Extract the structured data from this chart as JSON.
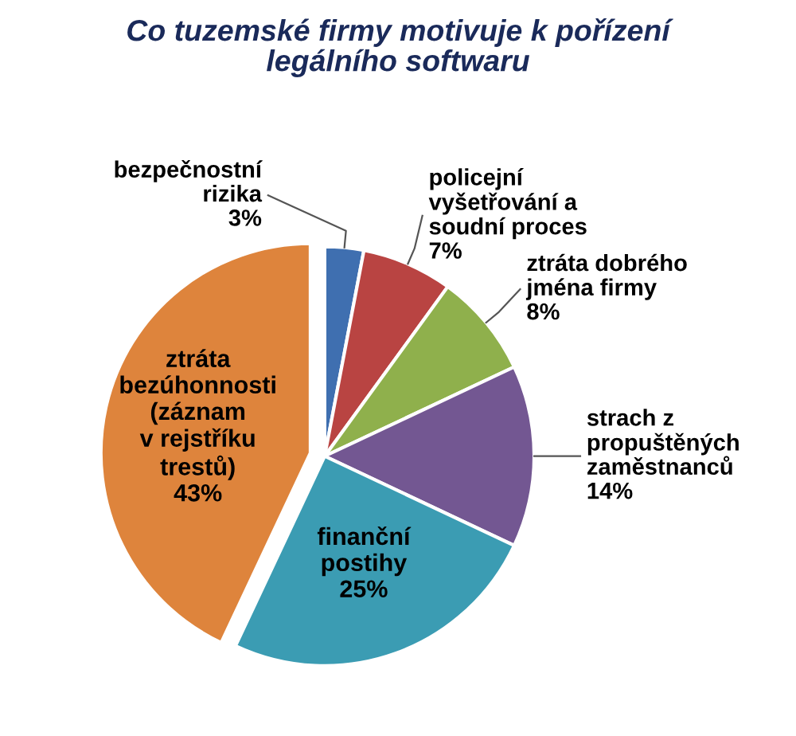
{
  "chart_data": {
    "type": "pie",
    "title": "Co tuzemské firmy motivuje k pořízení\nlegálního softwaru",
    "categories": [
      "bezpečnostní\nrizika",
      "policejní\nvyšetřování a\nsoudní proces",
      "ztráta dobrého\njména firmy",
      "strach z\npropuštěných\nzaměstnanců",
      "finanční\npostihy",
      "ztráta\nbezúhonnosti\n(záznam\nv rejstříku\ntrestů)"
    ],
    "values": [
      3,
      7,
      8,
      14,
      25,
      43
    ],
    "value_labels": [
      "3%",
      "7%",
      "8%",
      "14%",
      "25%",
      "43%"
    ],
    "colors": [
      "#3f6fb0",
      "#b94442",
      "#8fb04c",
      "#735792",
      "#3b9cb3",
      "#de843c"
    ],
    "legend": false
  }
}
